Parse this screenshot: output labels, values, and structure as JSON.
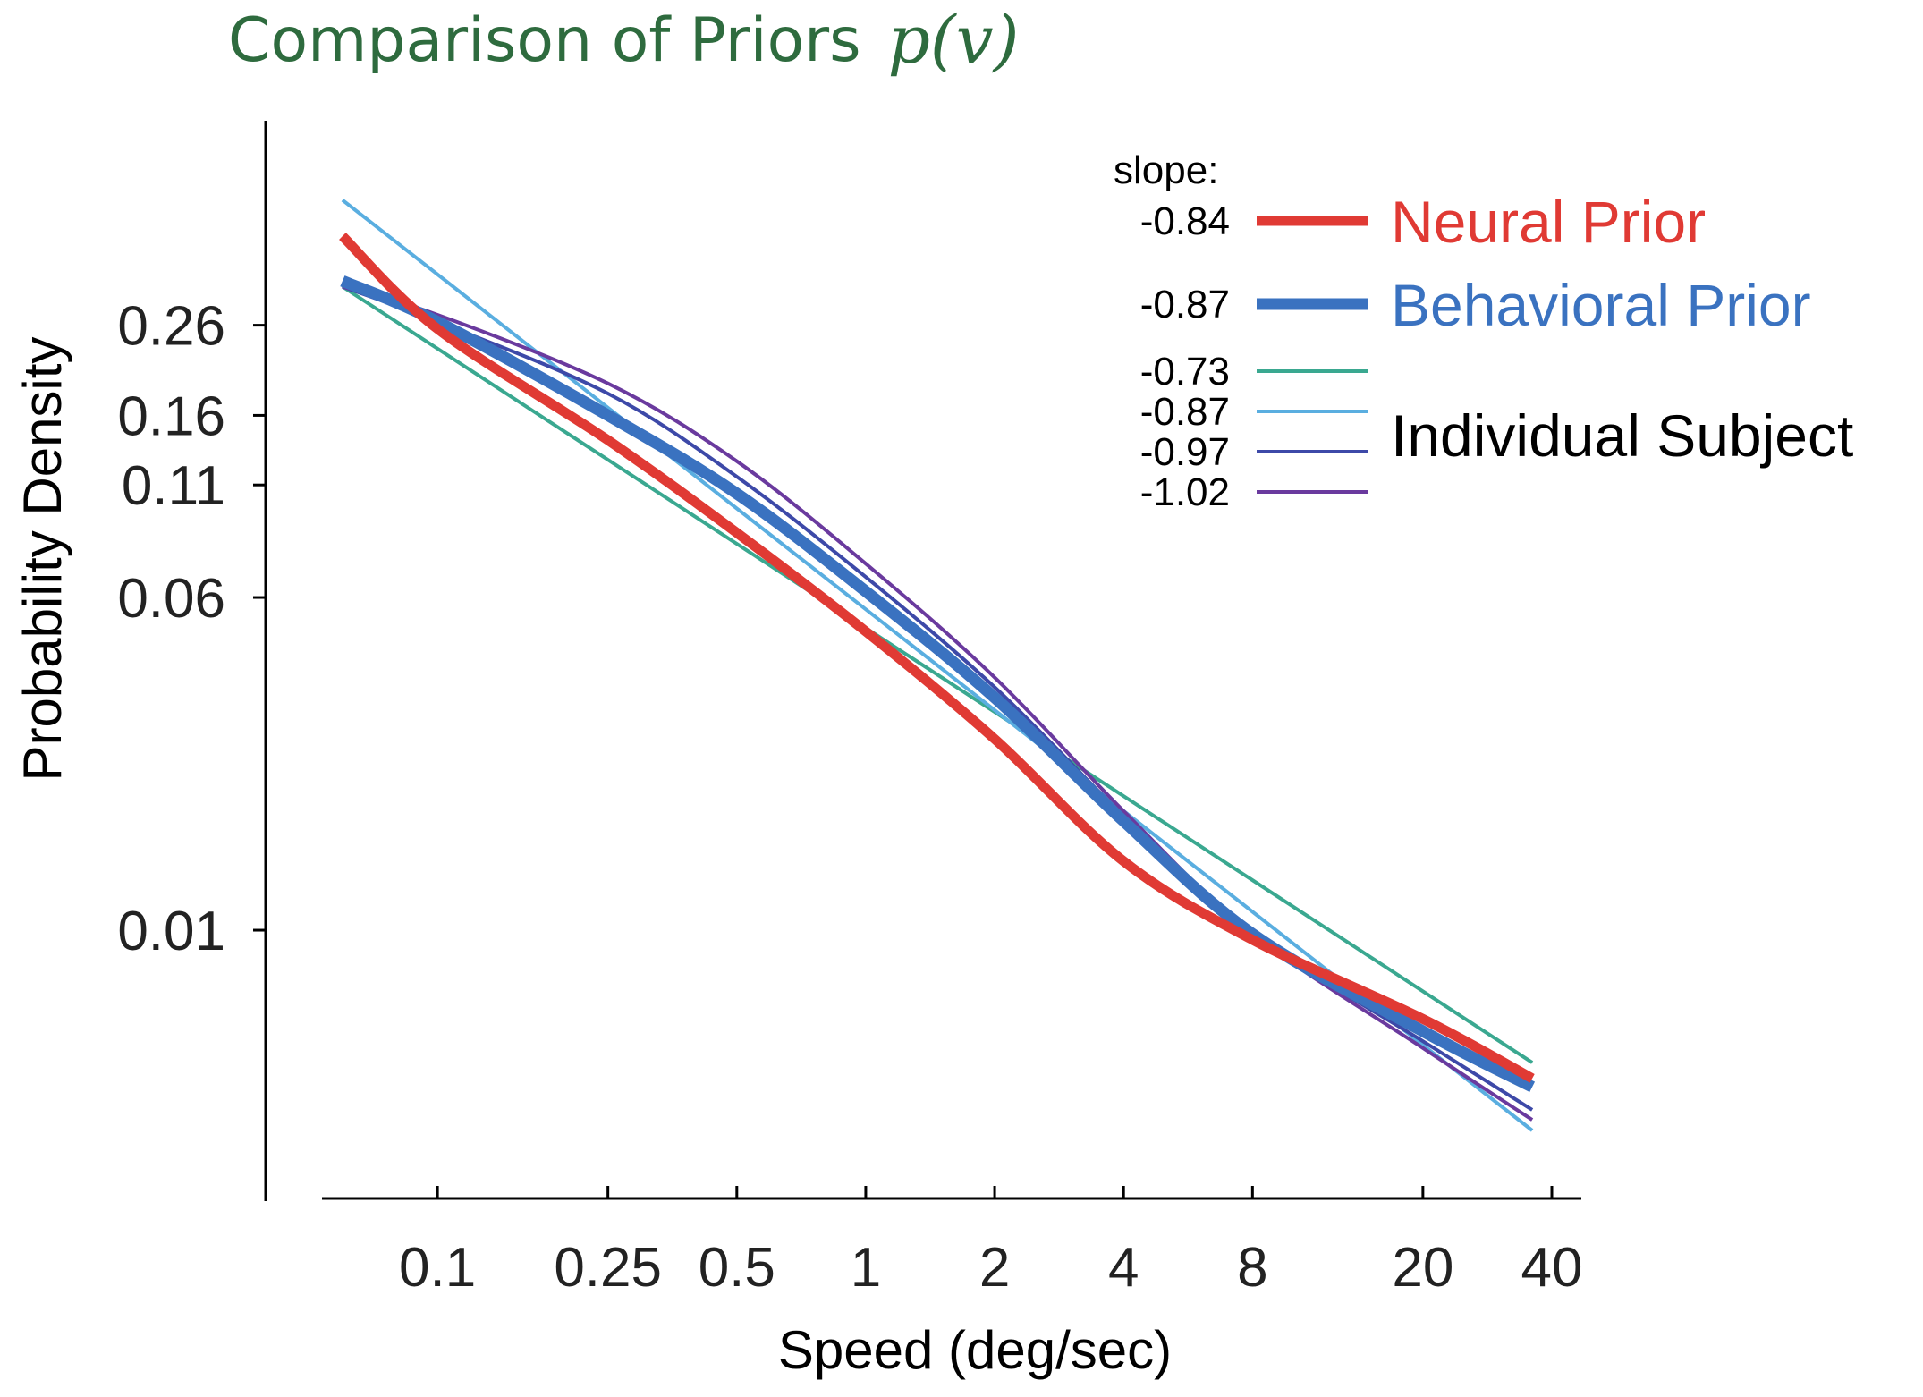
{
  "chart_data": {
    "type": "line",
    "title": "Comparison of Priors",
    "title_math": "p(v)",
    "xlabel": "Speed (deg/sec)",
    "ylabel": "Probability Density",
    "x_scale": "log",
    "y_scale": "log",
    "xlim": [
      0.05,
      40
    ],
    "ylim": [
      0.003,
      0.7
    ],
    "x_ticks": [
      0.1,
      0.25,
      0.5,
      1,
      2,
      4,
      8,
      20,
      40
    ],
    "x_tick_labels": [
      "0.1",
      "0.25",
      "0.5",
      "1",
      "2",
      "4",
      "8",
      "20",
      "40"
    ],
    "y_ticks": [
      0.26,
      0.16,
      0.11,
      0.06,
      0.01
    ],
    "y_tick_labels": [
      "0.26",
      "0.16",
      "0.11",
      "0.06",
      "0.01"
    ],
    "grid": false,
    "legend": {
      "position": "top-right",
      "slope_header": "slope:",
      "group_label": "Individual Subject"
    },
    "series": [
      {
        "name": "Neural Prior",
        "slope": "-0.84",
        "color": "#e03a34",
        "width": 11,
        "x": [
          0.06,
          0.1,
          0.25,
          0.5,
          1,
          2,
          4,
          8,
          20,
          36
        ],
        "y": [
          0.42,
          0.255,
          0.14,
          0.085,
          0.05,
          0.028,
          0.0145,
          0.0095,
          0.0062,
          0.0045
        ]
      },
      {
        "name": "Behavioral Prior",
        "slope": "-0.87",
        "color": "#3a72c0",
        "width": 13,
        "x": [
          0.06,
          0.1,
          0.25,
          0.5,
          1,
          2,
          4,
          8,
          20,
          36
        ],
        "y": [
          0.33,
          0.265,
          0.16,
          0.105,
          0.062,
          0.035,
          0.018,
          0.0098,
          0.0058,
          0.0043
        ]
      },
      {
        "name": "",
        "slope": "-0.73",
        "color": "#3aa890",
        "width": 4,
        "x": [
          0.06,
          36
        ],
        "y": [
          0.32,
          0.0049
        ]
      },
      {
        "name": "",
        "slope": "-0.87",
        "color": "#5aaee0",
        "width": 4,
        "x": [
          0.06,
          36
        ],
        "y": [
          0.51,
          0.0034
        ]
      },
      {
        "name": "",
        "slope": "-0.97",
        "color": "#3d49a8",
        "width": 4,
        "x": [
          0.06,
          0.1,
          0.25,
          0.5,
          1,
          2,
          4,
          8,
          20,
          36
        ],
        "y": [
          0.32,
          0.265,
          0.18,
          0.115,
          0.067,
          0.037,
          0.0185,
          0.0098,
          0.0055,
          0.0038
        ]
      },
      {
        "name": "",
        "slope": "-1.02",
        "color": "#6a3a9e",
        "width": 4,
        "x": [
          0.06,
          0.1,
          0.25,
          0.5,
          1,
          2,
          4,
          8,
          20,
          36
        ],
        "y": [
          0.32,
          0.275,
          0.19,
          0.125,
          0.072,
          0.039,
          0.019,
          0.0098,
          0.0053,
          0.0036
        ]
      }
    ]
  }
}
